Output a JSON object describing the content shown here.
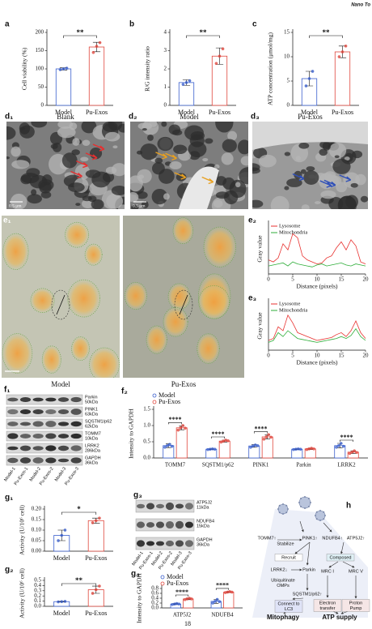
{
  "header": "Nano To",
  "page_number": "18",
  "chart_data": [
    {
      "type": "bar",
      "label": "a",
      "ylabel": "Cell viability (%)",
      "categories": [
        "Model",
        "Pu-Exos"
      ],
      "values": [
        100,
        160
      ],
      "errors": [
        3,
        13
      ],
      "points": [
        [
          98,
          100,
          102
        ],
        [
          145,
          162,
          172
        ]
      ],
      "colors": [
        "#3a5fcd",
        "#e0463c"
      ],
      "ylim": [
        0,
        200
      ],
      "yticks": [
        0,
        50,
        100,
        150,
        200
      ],
      "significance": "**"
    },
    {
      "type": "bar",
      "label": "b",
      "ylabel": "R/G intensity ratio",
      "categories": [
        "Model",
        "Pu-Exos"
      ],
      "values": [
        1.25,
        2.7
      ],
      "errors": [
        0.15,
        0.45
      ],
      "points": [
        [
          1.15,
          1.25,
          1.35
        ],
        [
          2.3,
          2.7,
          3.1
        ]
      ],
      "colors": [
        "#3a5fcd",
        "#e0463c"
      ],
      "ylim": [
        0,
        4
      ],
      "yticks": [
        0,
        1,
        2,
        3,
        4
      ],
      "significance": "**"
    },
    {
      "type": "bar",
      "label": "c",
      "ylabel": "ATP concentration (μmol/mg)",
      "categories": [
        "Model",
        "Pu-Exos"
      ],
      "values": [
        5.5,
        11
      ],
      "errors": [
        1.5,
        1.2
      ],
      "points": [
        [
          4,
          5.5,
          7
        ],
        [
          10,
          11,
          12.2
        ]
      ],
      "colors": [
        "#3a5fcd",
        "#e0463c"
      ],
      "ylim": [
        0,
        15
      ],
      "yticks": [
        0,
        5,
        10,
        15
      ],
      "significance": "**"
    },
    {
      "type": "line",
      "label": "e₂",
      "ylabel": "Gray value",
      "xlabel": "Distance (pixels)",
      "x": [
        0,
        1,
        2,
        3,
        4,
        5,
        6,
        7,
        8,
        9,
        10,
        11,
        12,
        13,
        14,
        15,
        16,
        17,
        18,
        19,
        20
      ],
      "xlim": [
        0,
        20
      ],
      "xticks": [
        0,
        5,
        10,
        15,
        20
      ],
      "ylim": [
        0,
        250
      ],
      "series": [
        {
          "name": "Lysosome",
          "color": "#e8312f",
          "values": [
            70,
            60,
            80,
            150,
            120,
            200,
            180,
            90,
            70,
            60,
            50,
            55,
            80,
            90,
            130,
            160,
            120,
            170,
            140,
            60,
            50
          ]
        },
        {
          "name": "Mitochondria",
          "color": "#2fae3a",
          "values": [
            40,
            45,
            50,
            55,
            40,
            60,
            50,
            45,
            40,
            35,
            45,
            50,
            40,
            45,
            50,
            55,
            45,
            40,
            50,
            45,
            40
          ]
        }
      ]
    },
    {
      "type": "line",
      "label": "e₃",
      "ylabel": "Gray value",
      "xlabel": "Distance (pixels)",
      "x": [
        0,
        1,
        2,
        3,
        4,
        5,
        6,
        7,
        8,
        9,
        10,
        11,
        12,
        13,
        14,
        15,
        16,
        17,
        18,
        19,
        20
      ],
      "xlim": [
        0,
        20
      ],
      "xticks": [
        0,
        5,
        10,
        15,
        20
      ],
      "ylim": [
        0,
        250
      ],
      "series": [
        {
          "name": "Lysosome",
          "color": "#e8312f",
          "values": [
            50,
            60,
            120,
            100,
            180,
            140,
            90,
            80,
            70,
            60,
            50,
            55,
            60,
            65,
            80,
            90,
            70,
            100,
            150,
            90,
            60
          ]
        },
        {
          "name": "Mitochondria",
          "color": "#2fae3a",
          "values": [
            40,
            50,
            90,
            70,
            100,
            80,
            60,
            55,
            50,
            45,
            40,
            45,
            50,
            55,
            60,
            70,
            60,
            75,
            110,
            70,
            50
          ]
        }
      ]
    },
    {
      "type": "bar",
      "label": "f₂",
      "ylabel": "Intensity to GAPDH",
      "categories": [
        "TOMM7",
        "SQSTM1/p62",
        "PINK1",
        "Parkin",
        "LRRK2"
      ],
      "ylim": [
        0,
        1.5
      ],
      "yticks": [
        {
          "value": 0,
          "label": "0.0"
        },
        0.5,
        {
          "value": 1,
          "label": "1.0"
        },
        1.5
      ],
      "significance": [
        "****",
        "****",
        "****",
        null,
        "****"
      ],
      "series": [
        {
          "name": "Model",
          "color": "#3a5fcd",
          "values": [
            0.38,
            0.27,
            0.37,
            0.27,
            0.38
          ],
          "errors": [
            0.06,
            0.01,
            0.04,
            0.01,
            0.07
          ],
          "points": [
            [
              0.33,
              0.38,
              0.42,
              0.36
            ],
            [
              0.26,
              0.27,
              0.28,
              0.27
            ],
            [
              0.33,
              0.37,
              0.4,
              0.38
            ],
            [
              0.26,
              0.27,
              0.28,
              0.27
            ],
            [
              0.33,
              0.38,
              0.45,
              0.36
            ]
          ]
        },
        {
          "name": "Pu-Exos",
          "color": "#e0463c",
          "values": [
            0.93,
            0.52,
            0.65,
            0.28,
            0.18
          ],
          "errors": [
            0.06,
            0.03,
            0.06,
            0.02,
            0.04
          ],
          "points": [
            [
              0.86,
              0.93,
              1.0,
              0.92
            ],
            [
              0.49,
              0.52,
              0.55,
              0.53
            ],
            [
              0.58,
              0.65,
              0.72,
              0.64
            ],
            [
              0.26,
              0.28,
              0.3,
              0.28
            ],
            [
              0.14,
              0.18,
              0.22,
              0.17
            ]
          ]
        }
      ]
    },
    {
      "type": "bar",
      "label": "g₁",
      "ylabel": "Activity (U/10⁶ cell)",
      "categories": [
        "Model",
        "Pu-Exos"
      ],
      "values": [
        0.075,
        0.145
      ],
      "errors": [
        0.025,
        0.012
      ],
      "points": [
        [
          0.05,
          0.075,
          0.1
        ],
        [
          0.135,
          0.145,
          0.157
        ]
      ],
      "colors": [
        "#3a5fcd",
        "#e0463c"
      ],
      "ylim": [
        0,
        0.2
      ],
      "yticks": [
        {
          "value": 0,
          "label": "0.00"
        },
        0.05,
        {
          "value": 0.1,
          "label": "0.10"
        },
        0.15,
        {
          "value": 0.2,
          "label": "0.20"
        }
      ],
      "significance": "*"
    },
    {
      "type": "bar",
      "label": "g₂",
      "ylabel": "Activity (U/10⁶ cell)",
      "categories": [
        "Model",
        "Pu-Exos"
      ],
      "values": [
        0.09,
        0.32
      ],
      "errors": [
        0.005,
        0.07
      ],
      "points": [
        [
          0.085,
          0.09,
          0.095
        ],
        [
          0.25,
          0.32,
          0.39
        ]
      ],
      "colors": [
        "#3a5fcd",
        "#e0463c"
      ],
      "ylim": [
        0,
        0.5
      ],
      "yticks": [
        {
          "value": 0,
          "label": "0.0"
        },
        0.1,
        0.2,
        0.3,
        0.4,
        0.5
      ],
      "significance": "**"
    },
    {
      "type": "bar",
      "label": "g₄",
      "ylabel": "Intensity to GAPDH",
      "categories": [
        "ATP5J2",
        "NDUFB4"
      ],
      "ylim": [
        0,
        0.8
      ],
      "yticks": [
        {
          "value": 0,
          "label": "0.0"
        },
        0.2,
        0.4,
        0.6,
        0.8
      ],
      "significance": [
        "****",
        "****"
      ],
      "series": [
        {
          "name": "Model",
          "color": "#3a5fcd",
          "values": [
            0.16,
            0.27
          ],
          "errors": [
            0.02,
            0.08
          ],
          "points": [
            [
              0.14,
              0.16,
              0.18,
              0.16
            ],
            [
              0.2,
              0.27,
              0.35,
              0.26
            ]
          ]
        },
        {
          "name": "Pu-Exos",
          "color": "#e0463c",
          "values": [
            0.37,
            0.65
          ],
          "errors": [
            0.03,
            0.02
          ],
          "points": [
            [
              0.34,
              0.37,
              0.4,
              0.37
            ],
            [
              0.63,
              0.65,
              0.67,
              0.65
            ]
          ]
        }
      ]
    }
  ],
  "micrographs": [
    {
      "label": "d₁",
      "title": "Blank",
      "scale": "0.5 μm"
    },
    {
      "label": "d₂",
      "title": "Model",
      "scale": "0.5 μm"
    },
    {
      "label": "d₃",
      "title": "Pu-Exos"
    }
  ],
  "fluorescence": {
    "label": "e₁",
    "titles": [
      "Model",
      "Pu-Exos"
    ]
  },
  "blots": [
    {
      "label": "f₁",
      "rows": [
        {
          "name": "Parkin",
          "size": "50kDa"
        },
        {
          "name": "PINK1",
          "size": "63kDa"
        },
        {
          "name": "SQSTM1/p62",
          "size": "62kDa"
        },
        {
          "name": "TOMM7",
          "size": "10kDa"
        },
        {
          "name": "LRRK2",
          "size": "286kDa"
        },
        {
          "name": "GAPDH",
          "size": "36kDa"
        }
      ],
      "lanes": [
        "Model-1",
        "Pu-Exos-1",
        "Model-2",
        "Pu-Exos-2",
        "Model-3",
        "Pu-Exos-3"
      ]
    },
    {
      "label": "g₃",
      "rows": [
        {
          "name": "ATP5J2",
          "size": "11kDa"
        },
        {
          "name": "NDUFB4",
          "size": "15kDa"
        },
        {
          "name": "GAPDH",
          "size": "36kDa"
        }
      ],
      "lanes": [
        "Model-1",
        "Pu-Exos-1",
        "Model-2",
        "Pu-Exos-2",
        "Model-3",
        "Pu-Exos-3"
      ]
    }
  ],
  "diagram": {
    "label": "h",
    "nodes": [
      [
        "TOMM7↑"
      ],
      [
        "Stabilize"
      ],
      [
        "PINK1↑"
      ],
      [
        "NDUFB4↑"
      ],
      [
        "ATP5J2↑"
      ],
      [
        "Recruit"
      ],
      [
        "Composed"
      ],
      [
        "LRRK2↓"
      ],
      [
        "Parkin"
      ],
      [
        "MRC I"
      ],
      [
        "MRC V"
      ],
      [
        "Ubiquitinate",
        "OMPs"
      ],
      [
        "SQSTM1/p62↑"
      ],
      [
        "Connect to",
        "LC3"
      ],
      [
        "Electron",
        "transfer"
      ],
      [
        "Proton",
        "Pump"
      ],
      [
        "Mitophagy"
      ],
      [
        "ATP supply"
      ]
    ]
  }
}
